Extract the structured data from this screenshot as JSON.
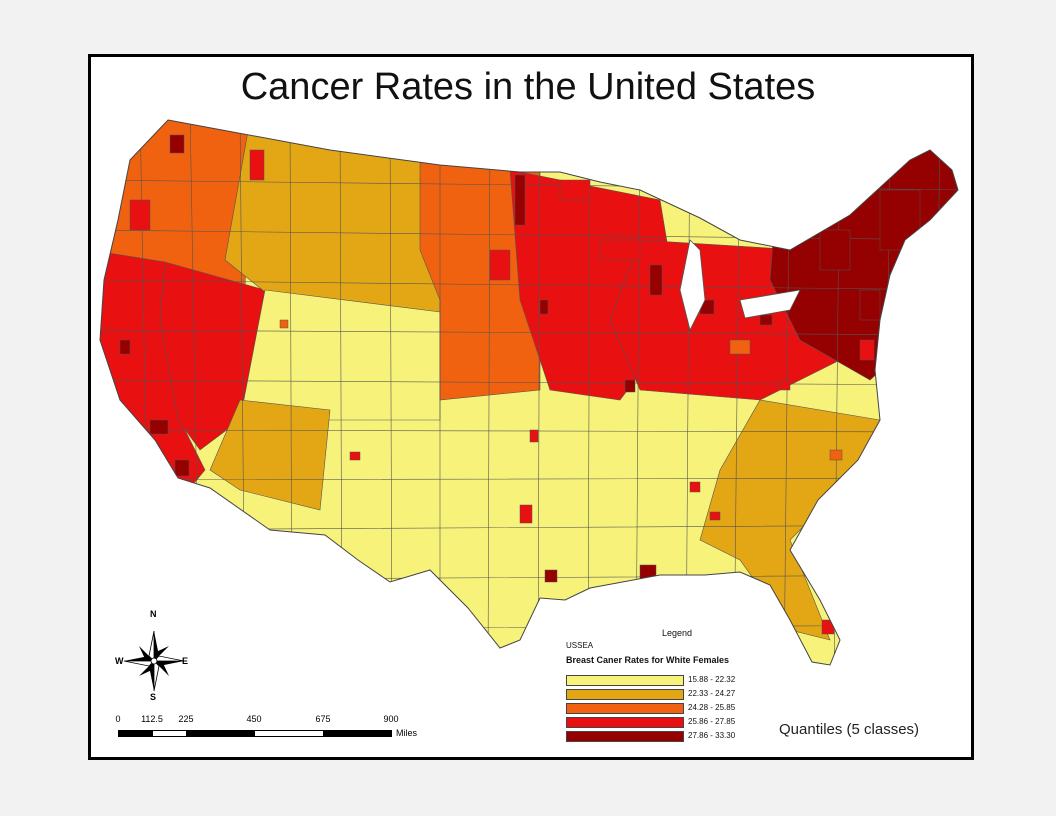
{
  "title": "Cancer Rates in the United States",
  "legend": {
    "title": "Legend",
    "layer": "USSEA",
    "field": "Breast Caner Rates for White Females",
    "classes": [
      {
        "label": "15.88 - 22.32",
        "color": "#f7f37a"
      },
      {
        "label": "22.33 - 24.27",
        "color": "#e3a614"
      },
      {
        "label": "24.28 - 25.85",
        "color": "#f0620f"
      },
      {
        "label": "25.86 - 27.85",
        "color": "#e81010"
      },
      {
        "label": "27.86 - 33.30",
        "color": "#950000"
      }
    ]
  },
  "classification_method": "Quantiles (5 classes)",
  "compass": {
    "n": "N",
    "s": "S",
    "e": "E",
    "w": "W"
  },
  "scalebar": {
    "ticks": [
      "0",
      "112.5",
      "225",
      "450",
      "675",
      "900"
    ],
    "units": "Miles"
  },
  "colors": {
    "border": "#555555",
    "frame": "#000000"
  },
  "regions": {
    "pacific_northwest": {
      "class": 2
    },
    "california": {
      "class": 3
    },
    "nevada": {
      "class": 3
    },
    "northern_rockies": {
      "class": 1
    },
    "great_basin": {
      "class": 0
    },
    "southwest": {
      "class": 1
    },
    "northern_plains": {
      "class": 2
    },
    "upper_midwest": {
      "class": 3
    },
    "great_lakes": {
      "class": 3
    },
    "northeast": {
      "class": 4
    },
    "south": {
      "class": 0
    },
    "southeast_coast": {
      "class": 1
    }
  }
}
